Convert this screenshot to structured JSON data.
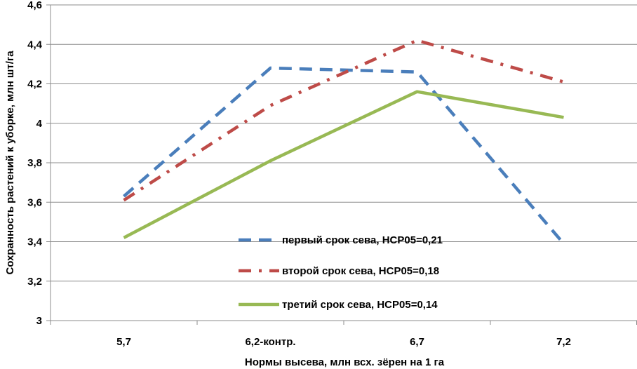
{
  "chart_data": {
    "type": "line",
    "title": "",
    "xlabel": "Нормы высева, млн всх. зёрен на 1 га",
    "ylabel": "Сохранность растений к уборке, млн шт/га",
    "categories": [
      "5,7",
      "6,2-контр.",
      "6,7",
      "7,2"
    ],
    "ylim": [
      3,
      4.6
    ],
    "yticks": [
      3,
      3.2,
      3.4,
      3.6,
      3.8,
      4,
      4.2,
      4.4,
      4.6
    ],
    "ytick_labels": [
      "3",
      "3,2",
      "3,4",
      "3,6",
      "3,8",
      "4",
      "4,2",
      "4,4",
      "4,6"
    ],
    "grid": true,
    "legend_position": "bottom-center",
    "series": [
      {
        "name": "первый срок сева, НСР05=0,21",
        "values": [
          3.63,
          4.28,
          4.26,
          3.39
        ],
        "color": "#4a7ebb",
        "style": "dashed"
      },
      {
        "name": "второй срок сева, НСР05=0,18",
        "values": [
          3.61,
          4.09,
          4.42,
          4.21
        ],
        "color": "#be4b48",
        "style": "dash-dot"
      },
      {
        "name": "третий срок сева, НСР05=0,14",
        "values": [
          3.42,
          3.81,
          4.16,
          4.03
        ],
        "color": "#98b954",
        "style": "solid"
      }
    ]
  }
}
